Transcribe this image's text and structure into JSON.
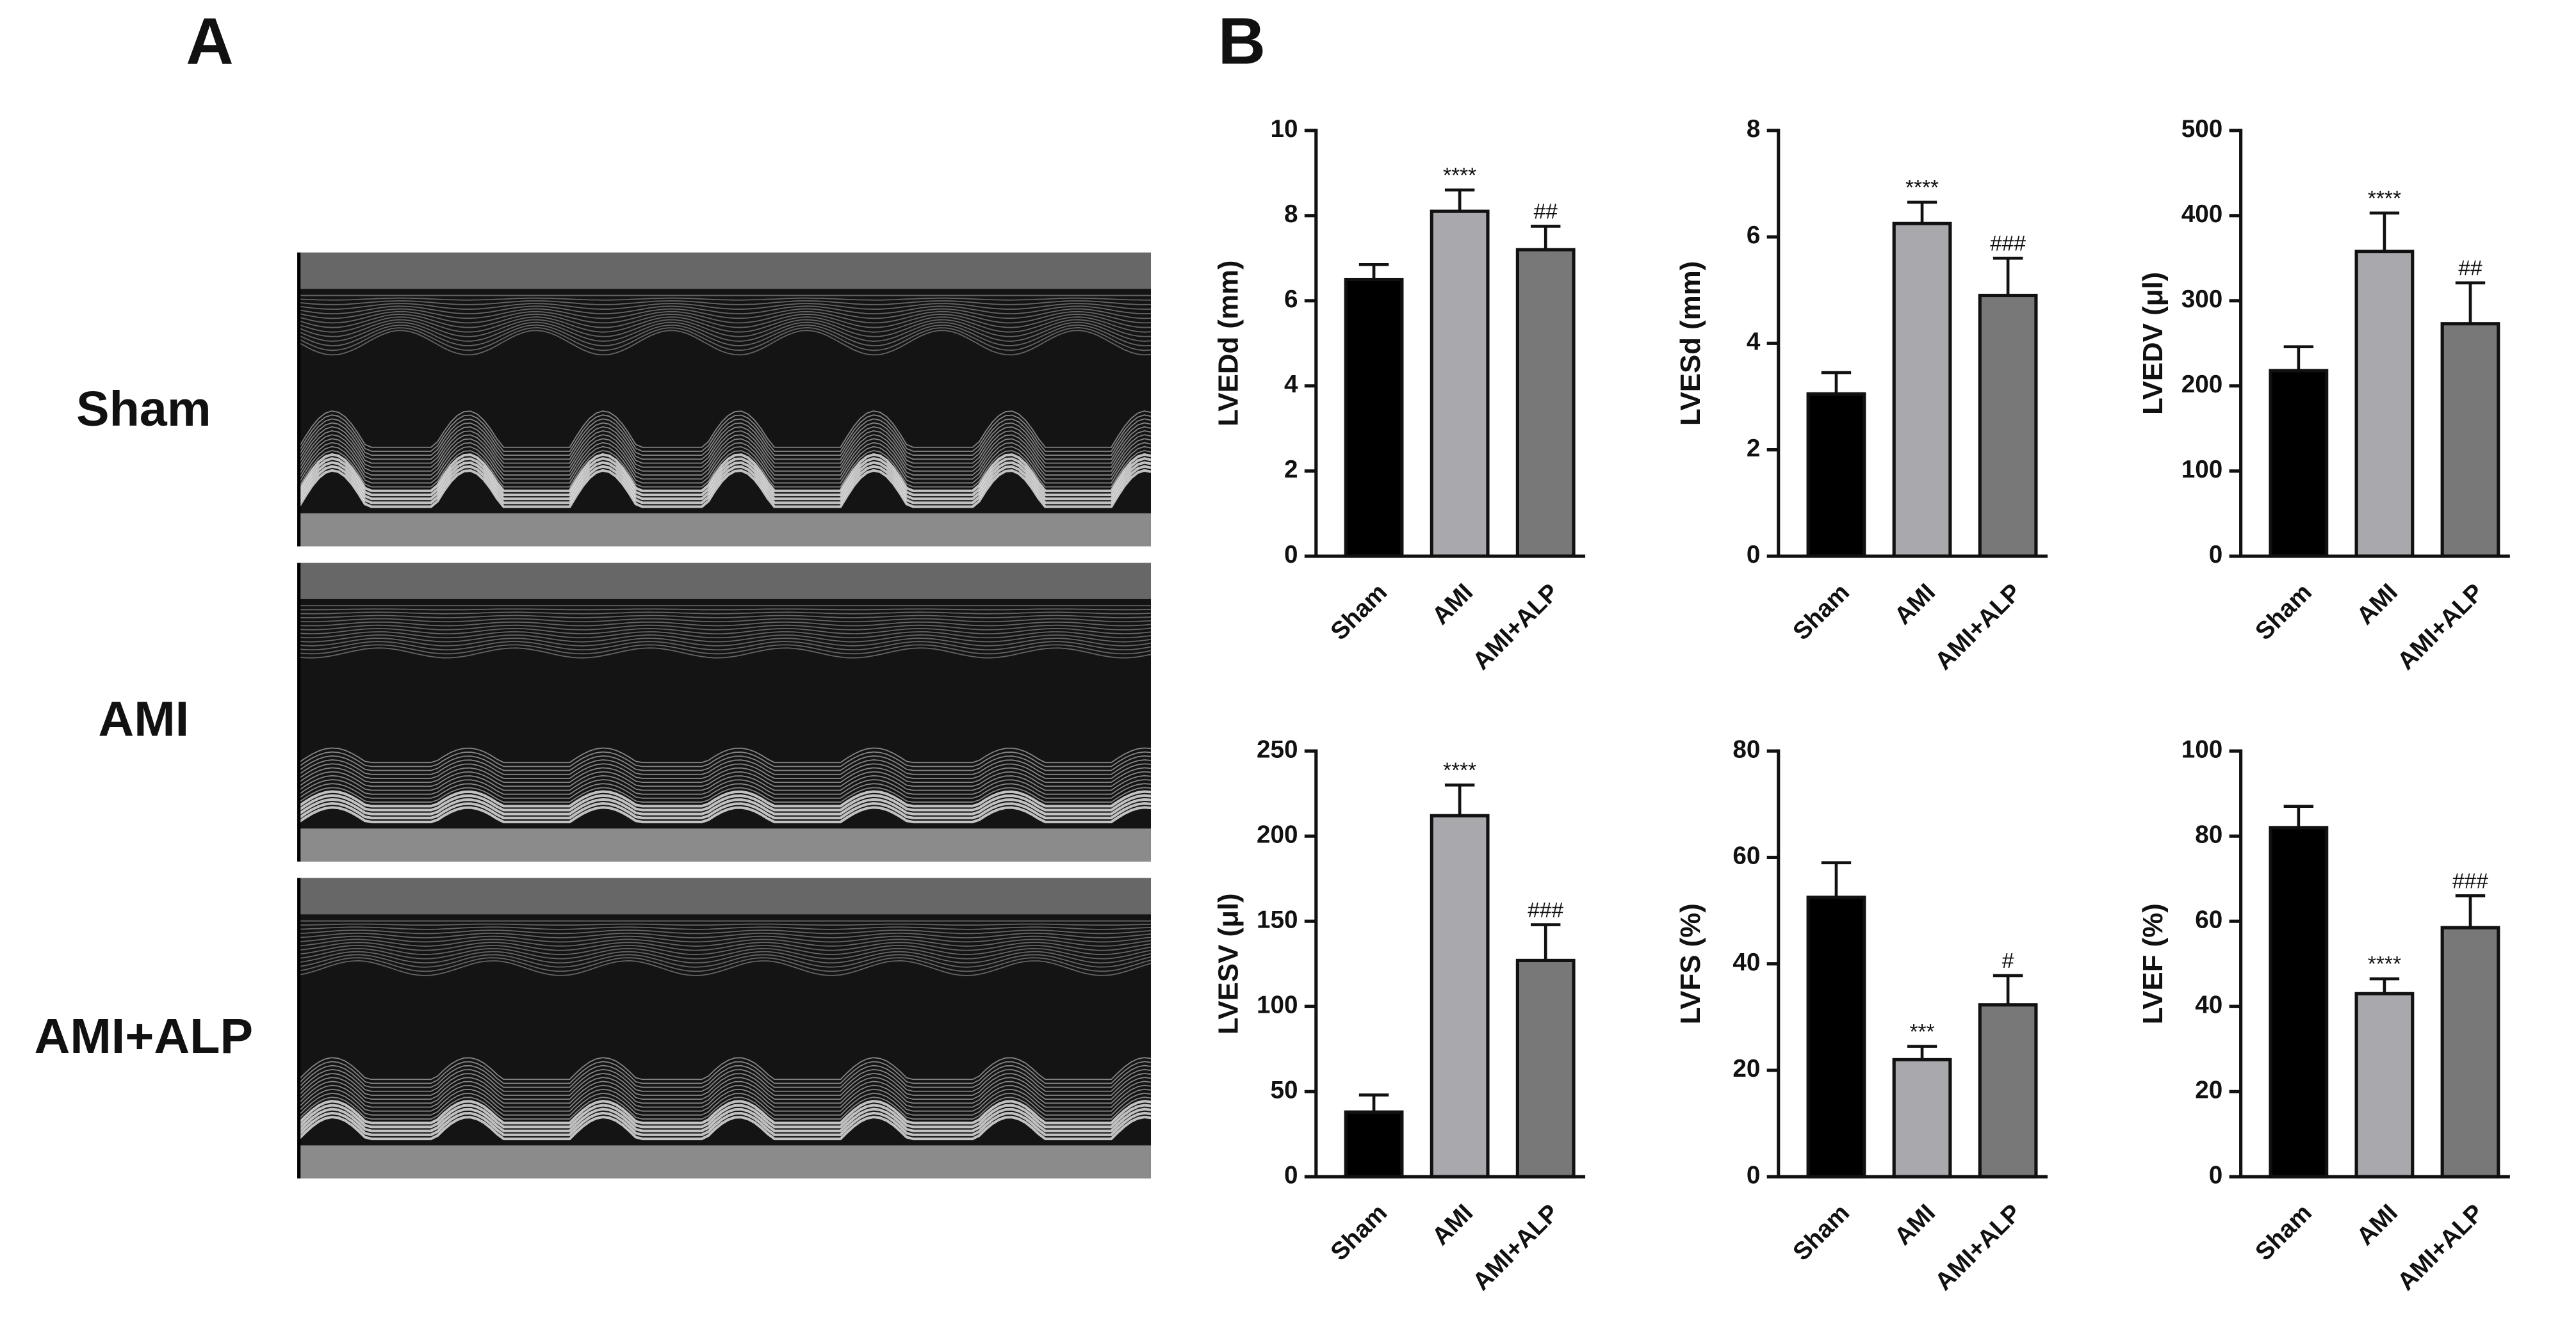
{
  "panel_labels": [
    "A",
    "B"
  ],
  "echo_labels": [
    "Sham",
    "AMI",
    "AMI+ALP"
  ],
  "chart_data": [
    {
      "type": "bar",
      "ylabel": "LVEDd (mm)",
      "categories": [
        "Sham",
        "AMI",
        "AMI+ALP"
      ],
      "values": [
        6.5,
        8.1,
        7.2
      ],
      "errors": [
        0.35,
        0.5,
        0.55
      ],
      "annotations": [
        null,
        "****",
        "##"
      ],
      "colors": [
        "#000000",
        "#a9a9ad",
        "#787878"
      ],
      "ylim": [
        0,
        10
      ],
      "yticks": [
        0,
        2,
        4,
        6,
        8,
        10
      ]
    },
    {
      "type": "bar",
      "ylabel": "LVESd (mm)",
      "categories": [
        "Sham",
        "AMI",
        "AMI+ALP"
      ],
      "values": [
        3.05,
        6.25,
        4.9
      ],
      "errors": [
        0.4,
        0.4,
        0.7
      ],
      "annotations": [
        null,
        "****",
        "###"
      ],
      "colors": [
        "#000000",
        "#a9a9ad",
        "#787878"
      ],
      "ylim": [
        0,
        8
      ],
      "yticks": [
        0,
        2,
        4,
        6,
        8
      ]
    },
    {
      "type": "bar",
      "ylabel": "LVEDV (μl)",
      "categories": [
        "Sham",
        "AMI",
        "AMI+ALP"
      ],
      "values": [
        218,
        358,
        273
      ],
      "errors": [
        28,
        45,
        48
      ],
      "annotations": [
        null,
        "****",
        "##"
      ],
      "colors": [
        "#000000",
        "#a9a9ad",
        "#787878"
      ],
      "ylim": [
        0,
        500
      ],
      "yticks": [
        0,
        100,
        200,
        300,
        400,
        500
      ]
    },
    {
      "type": "bar",
      "ylabel": "LVESV (μl)",
      "categories": [
        "Sham",
        "AMI",
        "AMI+ALP"
      ],
      "values": [
        38,
        212,
        127
      ],
      "errors": [
        10,
        18,
        21
      ],
      "annotations": [
        null,
        "****",
        "###"
      ],
      "colors": [
        "#000000",
        "#a9a9ad",
        "#787878"
      ],
      "ylim": [
        0,
        250
      ],
      "yticks": [
        0,
        50,
        100,
        150,
        200,
        250
      ]
    },
    {
      "type": "bar",
      "ylabel": "LVFS (%)",
      "categories": [
        "Sham",
        "AMI",
        "AMI+ALP"
      ],
      "values": [
        52.5,
        22,
        32.3
      ],
      "errors": [
        6.5,
        2.5,
        5.5
      ],
      "annotations": [
        null,
        "***",
        "#"
      ],
      "colors": [
        "#000000",
        "#a9a9ad",
        "#787878"
      ],
      "ylim": [
        0,
        80
      ],
      "yticks": [
        0,
        20,
        40,
        60,
        80
      ]
    },
    {
      "type": "bar",
      "ylabel": "LVEF (%)",
      "categories": [
        "Sham",
        "AMI",
        "AMI+ALP"
      ],
      "values": [
        82,
        43,
        58.5
      ],
      "errors": [
        5,
        3.5,
        7.5
      ],
      "annotations": [
        null,
        "****",
        "###"
      ],
      "colors": [
        "#000000",
        "#a9a9ad",
        "#787878"
      ],
      "ylim": [
        0,
        100
      ],
      "yticks": [
        0,
        20,
        40,
        60,
        80,
        100
      ]
    }
  ]
}
